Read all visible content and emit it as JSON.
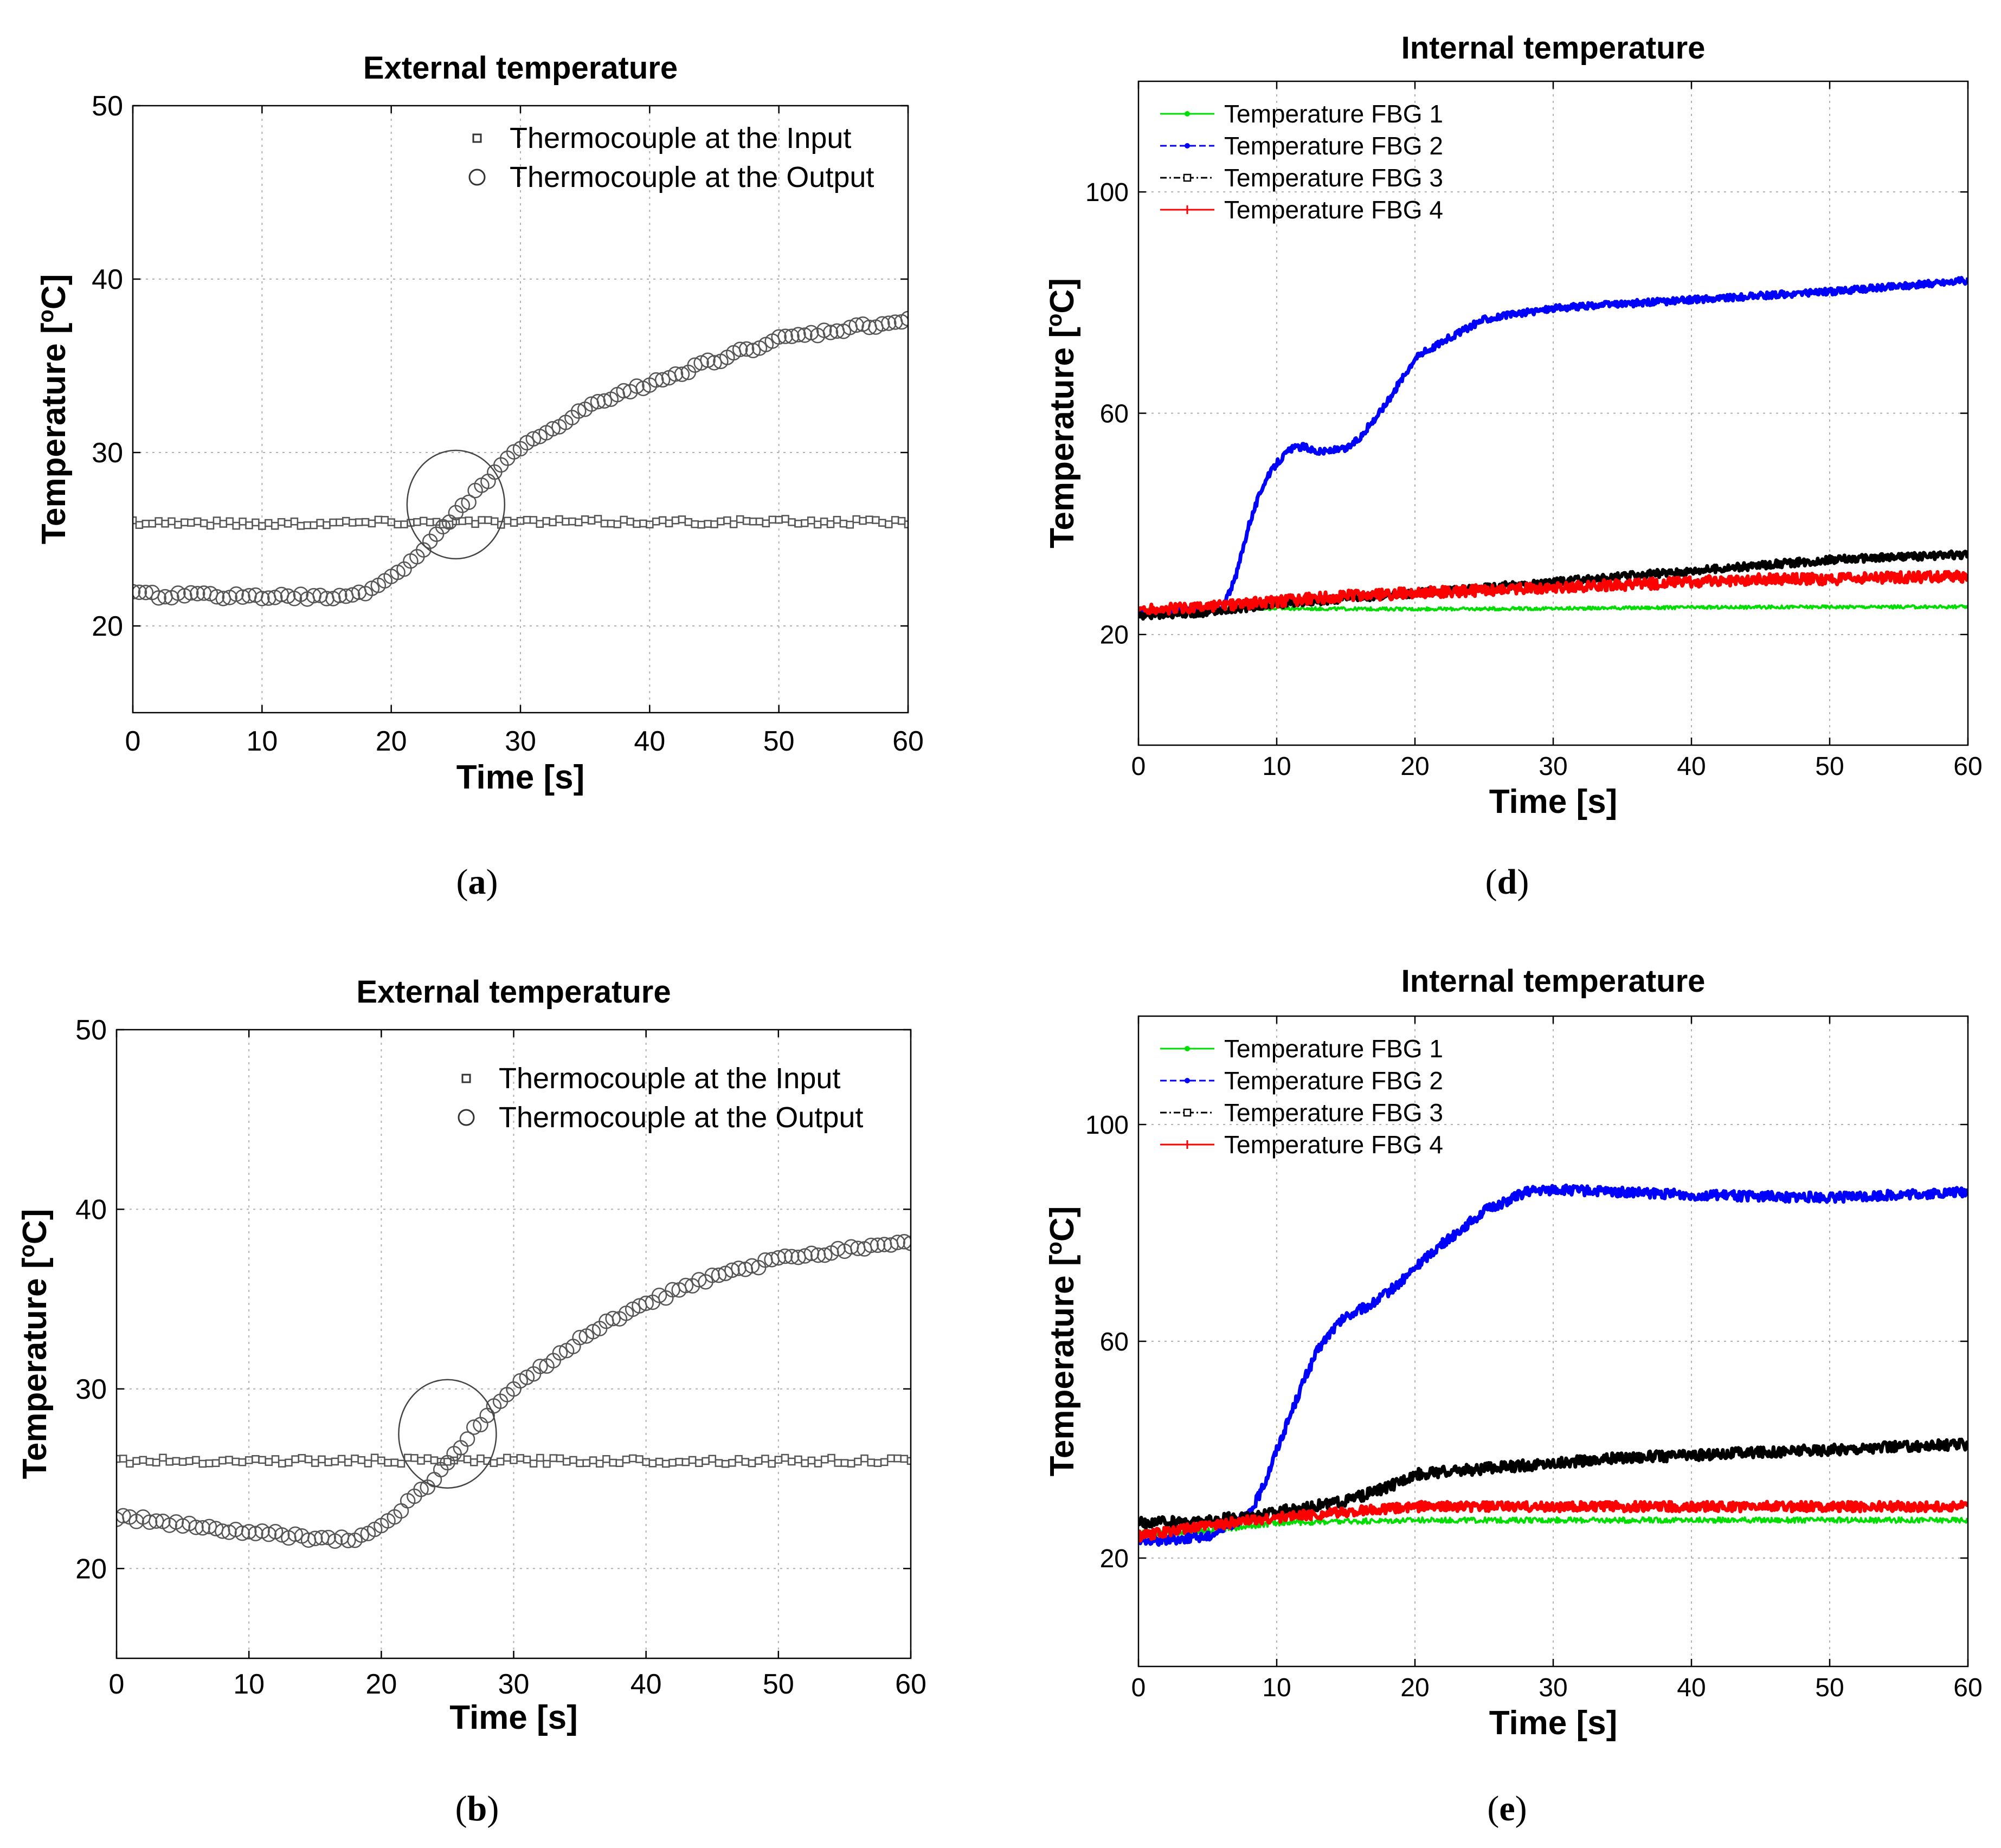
{
  "figure": {
    "captions": {
      "a": "a",
      "b": "b",
      "d": "d",
      "e": "e"
    },
    "caption_open": "(",
    "caption_close": ")"
  },
  "colors": {
    "green": "#00dd00",
    "blue": "#0000ff",
    "black": "#000000",
    "red": "#ff0000",
    "grid": "#b0b0b0"
  },
  "chart_data": [
    {
      "id": "a",
      "type": "scatter",
      "title": "External temperature",
      "xlabel": "Time [s]",
      "ylabel": "Temperature [",
      "ylabel_sup": "o",
      "ylabel_end": "C]",
      "xlim": [
        0,
        60
      ],
      "ylim": [
        15,
        50
      ],
      "xticks": [
        0,
        10,
        20,
        30,
        40,
        50,
        60
      ],
      "yticks": [
        20,
        30,
        40,
        50
      ],
      "legend_position": "top-right",
      "series": [
        {
          "name": "Thermocouple at the Input",
          "marker": "square",
          "color": "#555555",
          "kind": "input",
          "x": [
            0,
            10,
            20,
            30,
            40,
            50,
            60
          ],
          "values": [
            26.0,
            25.9,
            26.0,
            26.0,
            26.0,
            26.0,
            26.0
          ]
        },
        {
          "name": "Thermocouple at the Output",
          "marker": "circle",
          "color": "#555555",
          "kind": "output",
          "x": [
            0,
            10,
            16,
            18,
            20,
            22,
            24,
            26,
            28,
            30,
            35,
            40,
            45,
            50,
            55,
            60
          ],
          "values": [
            21.8,
            21.7,
            21.6,
            22.0,
            22.8,
            24.0,
            25.6,
            27.3,
            28.9,
            30.2,
            32.5,
            34.0,
            35.3,
            36.5,
            37.1,
            37.6
          ]
        }
      ],
      "annotation": {
        "shape": "ellipse",
        "cx": 25,
        "cy": 27
      }
    },
    {
      "id": "d",
      "type": "line",
      "title": "Internal temperature",
      "xlabel": "Time [s]",
      "ylabel": "Temperature [",
      "ylabel_sup": "o",
      "ylabel_end": "C]",
      "xlim": [
        0,
        60
      ],
      "ylim": [
        0,
        120
      ],
      "xticks": [
        0,
        10,
        20,
        30,
        40,
        50,
        60
      ],
      "yticks": [
        20,
        60,
        100
      ],
      "legend_position": "top-left",
      "series": [
        {
          "name": "Temperature FBG 1",
          "color": "#00dd00",
          "marker": "dot",
          "dash": "solid",
          "noise": 0.3,
          "x": [
            0,
            5,
            10,
            20,
            30,
            40,
            50,
            60
          ],
          "values": [
            24.5,
            24.8,
            24.7,
            24.6,
            24.7,
            24.9,
            25.0,
            25.0
          ]
        },
        {
          "name": "Temperature FBG 2",
          "color": "#0000ff",
          "marker": "dot",
          "dash": "dashed",
          "noise": 0.6,
          "x": [
            0,
            6,
            7,
            8,
            9,
            10,
            11,
            12,
            13,
            15,
            16,
            18,
            20,
            22,
            25,
            30,
            40,
            50,
            60
          ],
          "values": [
            24.0,
            24.5,
            30.0,
            40.0,
            47.0,
            51.0,
            53.5,
            54.0,
            53.0,
            53.5,
            55.5,
            62.0,
            70.0,
            73.0,
            77.0,
            79.0,
            80.5,
            82.0,
            84.0
          ]
        },
        {
          "name": "Temperature FBG 3",
          "color": "#000000",
          "marker": "square",
          "dash": "dashdot",
          "noise": 0.7,
          "x": [
            0,
            5,
            10,
            15,
            20,
            25,
            30,
            35,
            40,
            45,
            50,
            55,
            60
          ],
          "values": [
            23.5,
            24.0,
            25.5,
            26.5,
            27.5,
            28.5,
            29.5,
            30.5,
            31.5,
            32.5,
            33.5,
            34.0,
            34.5
          ]
        },
        {
          "name": "Temperature FBG 4",
          "color": "#ff0000",
          "marker": "plus",
          "dash": "solid",
          "noise": 1.0,
          "x": [
            0,
            5,
            10,
            15,
            20,
            25,
            30,
            35,
            40,
            45,
            50,
            55,
            60
          ],
          "values": [
            24.5,
            25.0,
            26.0,
            27.0,
            27.5,
            28.0,
            28.5,
            29.0,
            29.5,
            30.0,
            30.0,
            30.3,
            30.5
          ]
        }
      ]
    },
    {
      "id": "b",
      "type": "scatter",
      "title": "External temperature",
      "xlabel": "Time [s]",
      "ylabel": "Temperature [",
      "ylabel_sup": "o",
      "ylabel_end": "C]",
      "xlim": [
        0,
        60
      ],
      "ylim": [
        15,
        50
      ],
      "xticks": [
        0,
        10,
        20,
        30,
        40,
        50,
        60
      ],
      "yticks": [
        20,
        30,
        40,
        50
      ],
      "legend_position": "top-right",
      "series": [
        {
          "name": "Thermocouple at the Input",
          "marker": "square",
          "color": "#555555",
          "kind": "input",
          "x": [
            0,
            10,
            20,
            30,
            40,
            50,
            60
          ],
          "values": [
            26.0,
            26.0,
            26.0,
            26.0,
            26.0,
            26.0,
            26.0
          ]
        },
        {
          "name": "Thermocouple at the Output",
          "marker": "circle",
          "color": "#555555",
          "kind": "output",
          "x": [
            0,
            5,
            10,
            15,
            18,
            20,
            22,
            24,
            26,
            28,
            30,
            35,
            40,
            45,
            50,
            55,
            60
          ],
          "values": [
            22.9,
            22.4,
            22.0,
            21.7,
            21.6,
            22.3,
            23.6,
            25.0,
            26.8,
            28.6,
            30.0,
            32.8,
            34.8,
            36.2,
            37.2,
            37.8,
            38.2
          ]
        }
      ],
      "annotation": {
        "shape": "ellipse",
        "cx": 25,
        "cy": 27.5
      }
    },
    {
      "id": "e",
      "type": "line",
      "title": "Internal temperature",
      "xlabel": "Time [s]",
      "ylabel": "Temperature [",
      "ylabel_sup": "o",
      "ylabel_end": "C]",
      "xlim": [
        0,
        60
      ],
      "ylim": [
        0,
        120
      ],
      "xticks": [
        0,
        10,
        20,
        30,
        40,
        50,
        60
      ],
      "yticks": [
        20,
        60,
        100
      ],
      "legend_position": "top-left",
      "series": [
        {
          "name": "Temperature FBG 1",
          "color": "#00dd00",
          "marker": "dot",
          "dash": "solid",
          "noise": 0.5,
          "x": [
            0,
            5,
            10,
            20,
            30,
            40,
            50,
            60
          ],
          "values": [
            24.5,
            25.0,
            26.5,
            27.0,
            27.0,
            27.0,
            27.0,
            27.0
          ]
        },
        {
          "name": "Temperature FBG 2",
          "color": "#0000ff",
          "marker": "dot",
          "dash": "dashed",
          "noise": 0.9,
          "x": [
            0,
            5,
            8,
            9,
            10,
            11,
            12,
            13,
            14,
            15,
            17,
            19,
            21,
            23,
            25,
            28,
            30,
            40,
            50,
            60
          ],
          "values": [
            23.0,
            24.0,
            28.0,
            33.0,
            40.0,
            46.5,
            53.0,
            58.5,
            62.0,
            64.5,
            67.0,
            71.0,
            76.0,
            80.0,
            84.0,
            87.5,
            88.0,
            87.0,
            86.5,
            87.5
          ]
        },
        {
          "name": "Temperature FBG 3",
          "color": "#000000",
          "marker": "square",
          "dash": "dashdot",
          "noise": 1.0,
          "x": [
            0,
            5,
            10,
            15,
            18,
            20,
            25,
            30,
            35,
            40,
            50,
            60
          ],
          "values": [
            26.5,
            26.8,
            28.5,
            30.5,
            33.0,
            35.5,
            36.5,
            37.5,
            38.5,
            39.0,
            40.0,
            41.0
          ]
        },
        {
          "name": "Temperature FBG 4",
          "color": "#ff0000",
          "marker": "plus",
          "dash": "solid",
          "noise": 0.9,
          "x": [
            0,
            5,
            10,
            15,
            20,
            25,
            30,
            40,
            50,
            60
          ],
          "values": [
            24.0,
            26.0,
            27.5,
            28.5,
            29.5,
            29.5,
            29.5,
            29.5,
            29.5,
            29.5
          ]
        }
      ]
    }
  ]
}
